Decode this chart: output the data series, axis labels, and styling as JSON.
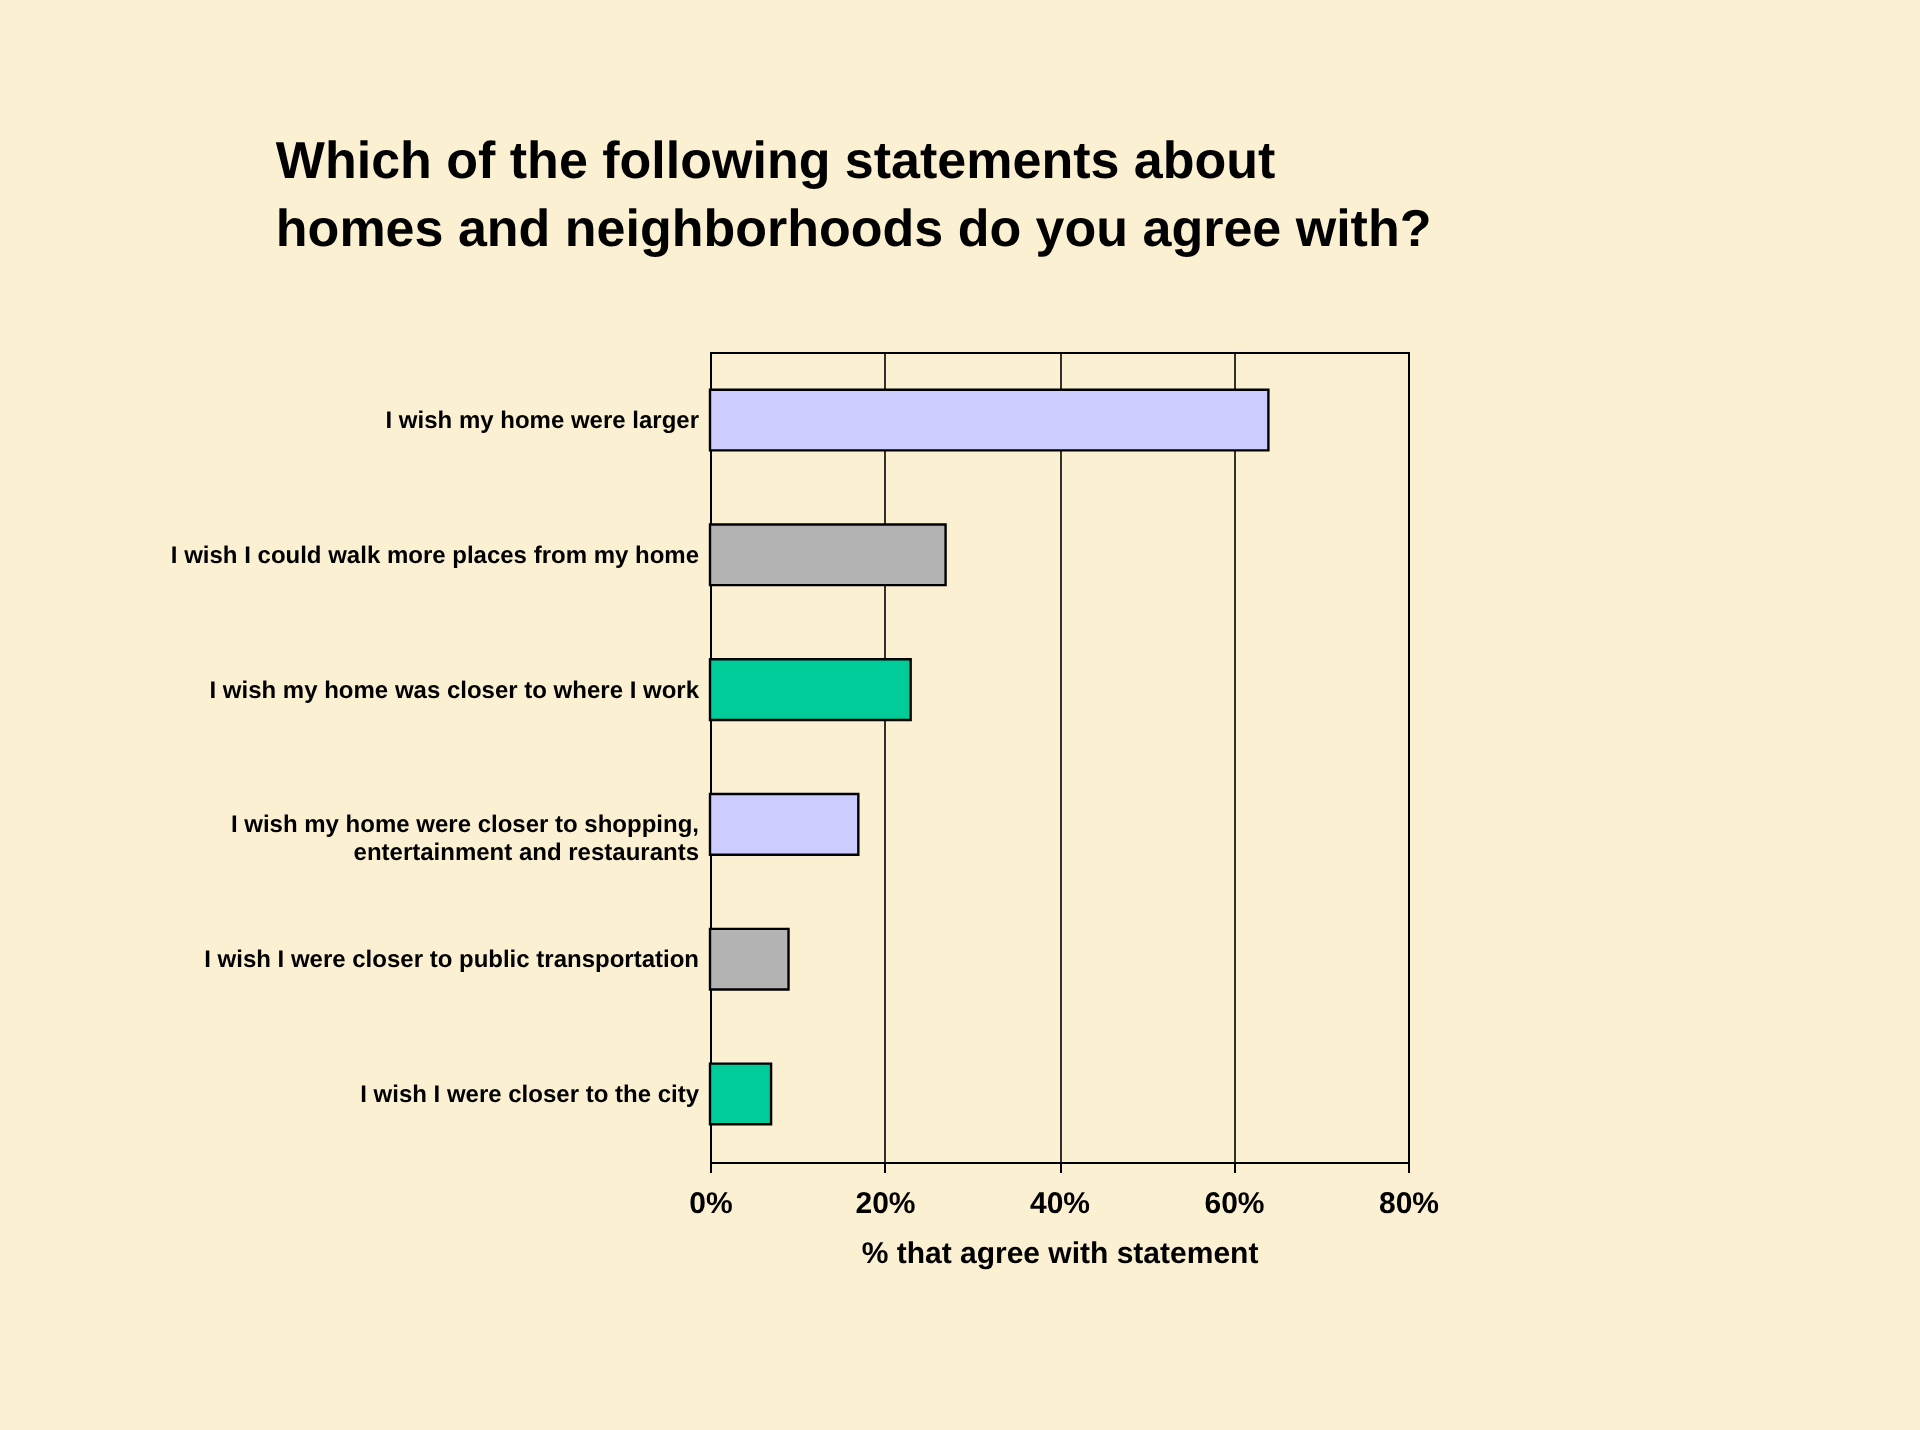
{
  "chart_data": {
    "type": "bar",
    "orientation": "horizontal",
    "title": [
      "Which of the following statements about",
      "homes and neighborhoods do you agree with?"
    ],
    "categories": [
      "I wish my home were larger",
      "I wish I could walk more places from my home",
      "I wish my home was closer to where I work",
      "I wish my home were closer to shopping, entertainment and restaurants",
      "I wish I were closer to public transportation",
      "I wish I were closer to the city"
    ],
    "values": [
      64,
      27,
      23,
      17,
      9,
      7
    ],
    "colors": [
      "#ccccff",
      "#b3b3b3",
      "#00cc99",
      "#ccccff",
      "#b3b3b3",
      "#00cc99"
    ],
    "xlabel": "% that agree with statement",
    "xlim": [
      0,
      80
    ],
    "xticks": [
      {
        "value": 0,
        "label": "0%"
      },
      {
        "value": 20,
        "label": "20%"
      },
      {
        "value": 40,
        "label": "40%"
      },
      {
        "value": 60,
        "label": "60%"
      },
      {
        "value": 80,
        "label": "80%"
      }
    ],
    "grid": "x"
  }
}
